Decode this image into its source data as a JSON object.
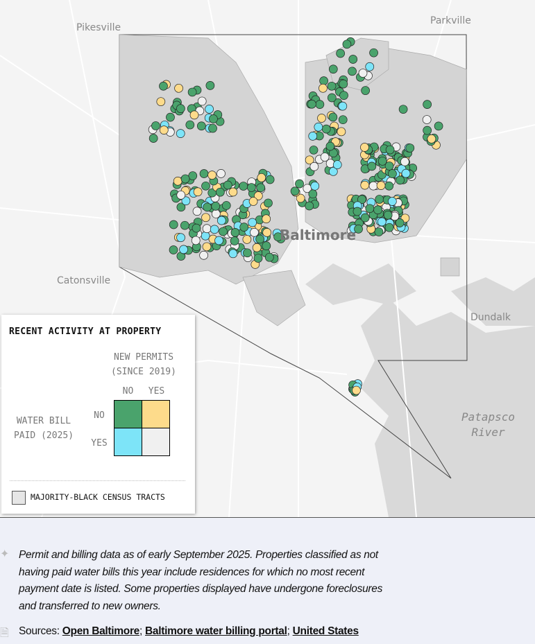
{
  "map": {
    "places": [
      "Pikesville",
      "Parkville",
      "Catonsville",
      "Dundalk",
      "Baltimore"
    ],
    "water_label": [
      "Patapsco",
      "River"
    ],
    "colors": {
      "no_bill_no_permit": "#4aa36c",
      "no_bill_permit": "#fddb8b",
      "paid_no_permit": "#7de4f8",
      "paid_permit": "#f0f0f0",
      "majority_black_tract": "#d4d4d4"
    }
  },
  "legend": {
    "title": "RECENT ACTIVITY AT PROPERTY",
    "col_header": [
      "NEW PERMITS",
      "(SINCE 2019)"
    ],
    "col_labels": [
      "NO",
      "YES"
    ],
    "row_header": [
      "WATER BILL",
      "PAID (2025)"
    ],
    "row_labels": [
      "NO",
      "YES"
    ],
    "tract_label": "MAJORITY-BLACK CENSUS TRACTS"
  },
  "notes": {
    "text": "Permit and billing data as of early September 2025. Properties classified as not having paid water bills this year include residences for which no most recent payment date is listed. Some properties displayed have undergone foreclosures and transferred to new owners.",
    "sources_label": "Sources:",
    "sources": [
      "Open Baltimore",
      "Baltimore water billing portal",
      "United States"
    ]
  }
}
